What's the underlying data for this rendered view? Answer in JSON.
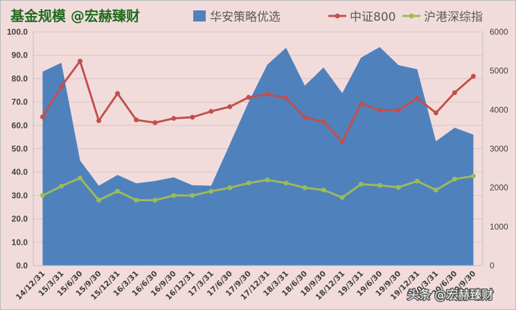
{
  "chart_data": {
    "type": "line",
    "title": "基金规模 @宏赫臻财",
    "categories": [
      "14/12/31",
      "15/3/31",
      "15/6/30",
      "15/9/30",
      "15/12/31",
      "16/3/31",
      "16/6/30",
      "16/9/30",
      "16/12/31",
      "17/3/31",
      "17/6/30",
      "17/9/30",
      "17/12/31",
      "18/3/31",
      "18/6/30",
      "18/9/30",
      "18/12/31",
      "19/3/31",
      "19/6/30",
      "19/9/30",
      "19/12/31",
      "20/3/31",
      "20/6/30",
      "20/9/30"
    ],
    "y_left": {
      "min": 0,
      "max": 100,
      "step": 10,
      "tick_labels": [
        "0.0",
        "10.0",
        "20.0",
        "30.0",
        "40.0",
        "50.0",
        "60.0",
        "70.0",
        "80.0",
        "90.0",
        "100.0"
      ]
    },
    "y_right": {
      "min": 0,
      "max": 6000,
      "step": 1000,
      "tick_labels": [
        "0",
        "1000",
        "2000",
        "3000",
        "4000",
        "5000",
        "6000"
      ]
    },
    "series": [
      {
        "name": "华安策略优选",
        "kind": "area",
        "axis": "left",
        "color": "#4f81bd",
        "values": [
          83,
          86.8,
          45,
          34.2,
          38.8,
          35.2,
          36.2,
          37.8,
          34.4,
          34.2,
          52,
          70,
          86,
          93.2,
          77,
          84.8,
          73.8,
          89,
          93.5,
          85.8,
          84,
          53.2,
          59,
          56
        ]
      },
      {
        "name": "中证800",
        "kind": "line",
        "axis": "right",
        "color": "#c0504d",
        "values": [
          3820,
          4600,
          5250,
          3720,
          4420,
          3740,
          3670,
          3780,
          3810,
          3960,
          4080,
          4320,
          4400,
          4300,
          3810,
          3690,
          3180,
          4160,
          3990,
          3990,
          4300,
          3920,
          4440,
          4860
        ]
      },
      {
        "name": "沪港深综指",
        "kind": "line",
        "axis": "right",
        "color": "#9bbb59",
        "values": [
          1800,
          2040,
          2250,
          1680,
          1910,
          1680,
          1680,
          1800,
          1800,
          1910,
          2000,
          2120,
          2200,
          2120,
          2000,
          1940,
          1750,
          2090,
          2060,
          2010,
          2170,
          1940,
          2220,
          2300
        ]
      }
    ],
    "legend_position": "top-right",
    "grid": true
  },
  "watermark": {
    "text": "头条 @宏赫臻财"
  }
}
